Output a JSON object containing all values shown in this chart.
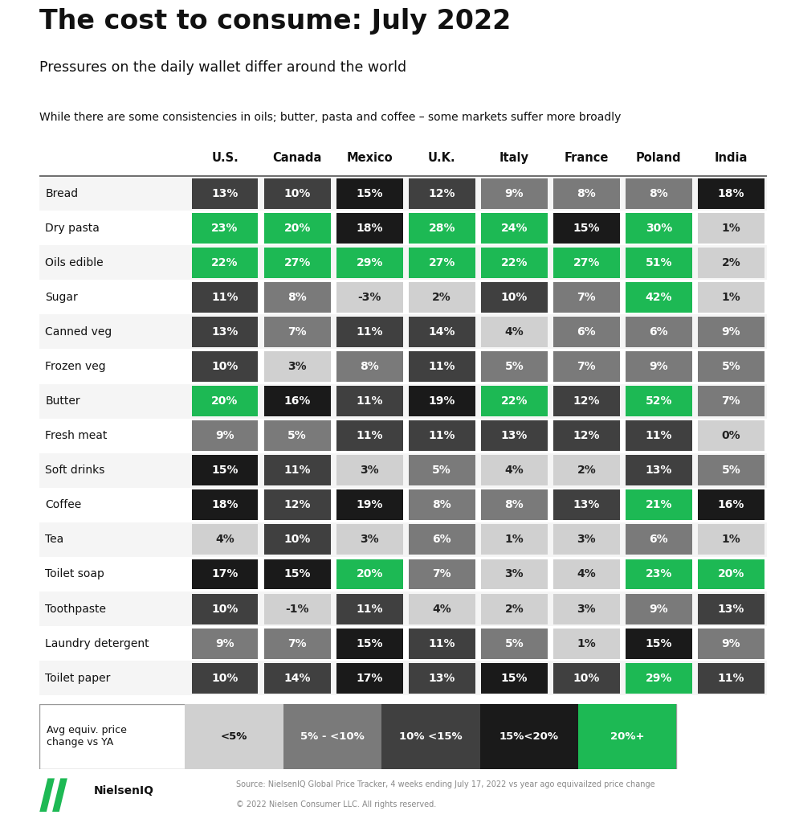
{
  "title": "The cost to consume: July 2022",
  "subtitle": "Pressures on the daily wallet differ around the world",
  "note": "While there are some consistencies in oils; butter, pasta and coffee – some markets suffer more broadly",
  "columns": [
    "U.S.",
    "Canada",
    "Mexico",
    "U.K.",
    "Italy",
    "France",
    "Poland",
    "India"
  ],
  "rows": [
    "Bread",
    "Dry pasta",
    "Oils edible",
    "Sugar",
    "Canned veg",
    "Frozen veg",
    "Butter",
    "Fresh meat",
    "Soft drinks",
    "Coffee",
    "Tea",
    "Toilet soap",
    "Toothpaste",
    "Laundry detergent",
    "Toilet paper"
  ],
  "values": [
    [
      13,
      10,
      15,
      12,
      9,
      8,
      8,
      18
    ],
    [
      23,
      20,
      18,
      28,
      24,
      15,
      30,
      1
    ],
    [
      22,
      27,
      29,
      27,
      22,
      27,
      51,
      2
    ],
    [
      11,
      8,
      -3,
      2,
      10,
      7,
      42,
      1
    ],
    [
      13,
      7,
      11,
      14,
      4,
      6,
      6,
      9
    ],
    [
      10,
      3,
      8,
      11,
      5,
      7,
      9,
      5
    ],
    [
      20,
      16,
      11,
      19,
      22,
      12,
      52,
      7
    ],
    [
      9,
      5,
      11,
      11,
      13,
      12,
      11,
      0
    ],
    [
      15,
      11,
      3,
      5,
      4,
      2,
      13,
      5
    ],
    [
      18,
      12,
      19,
      8,
      8,
      13,
      21,
      16
    ],
    [
      4,
      10,
      3,
      6,
      1,
      3,
      6,
      1
    ],
    [
      17,
      15,
      20,
      7,
      3,
      4,
      23,
      20
    ],
    [
      10,
      -1,
      11,
      4,
      2,
      3,
      9,
      13
    ],
    [
      9,
      7,
      15,
      11,
      5,
      1,
      15,
      9
    ],
    [
      10,
      14,
      17,
      13,
      15,
      10,
      29,
      11
    ]
  ],
  "color_lt5": "#d0d0d0",
  "color_5to10": "#7a7a7a",
  "color_10to15": "#404040",
  "color_15to20": "#1a1a1a",
  "color_20plus": "#1db954",
  "text_light": "#ffffff",
  "text_dark": "#222222",
  "row_bg_odd": "#f5f5f5",
  "row_bg_even": "#ffffff",
  "background": "#ffffff",
  "header_line_color": "#555555",
  "footer_source": "Source: NielsenIQ Global Price Tracker, 4 weeks ending July 17, 2022 vs year ago equivailzed price change",
  "footer_copyright": "© 2022 Nielsen Consumer LLC. All rights reserved.",
  "legend_labels": [
    "<5%",
    "5% - <10%",
    "10% <15%",
    "15%<20%",
    "20%+"
  ],
  "legend_colors": [
    "#d0d0d0",
    "#7a7a7a",
    "#404040",
    "#1a1a1a",
    "#1db954"
  ]
}
